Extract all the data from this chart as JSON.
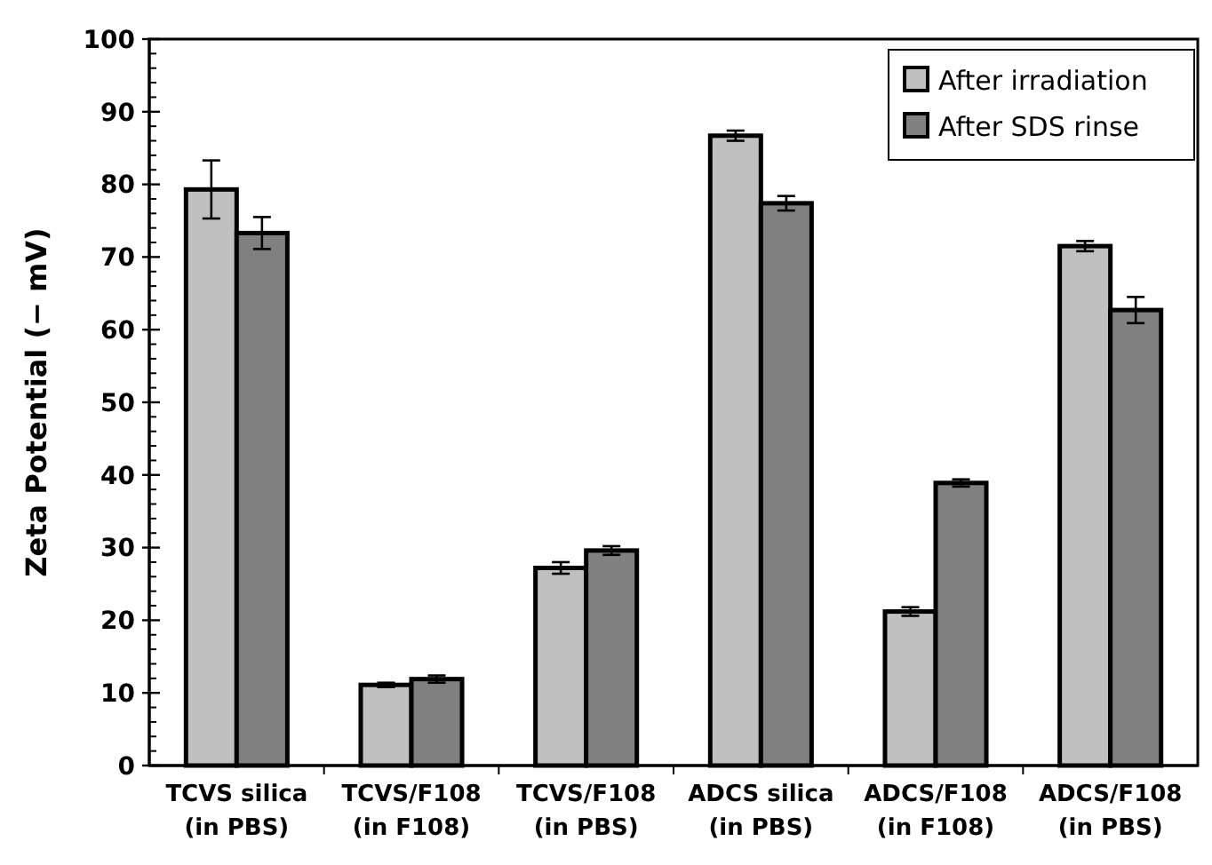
{
  "chart_data": {
    "type": "bar",
    "ylabel": "Zeta Potential (− mV)",
    "categories": [
      "TCVS silica\n(in PBS)",
      "TCVS/F108\n(in F108)",
      "TCVS/F108\n(in PBS)",
      "ADCS silica\n(in PBS)",
      "ADCS/F108\n(in F108)",
      "ADCS/F108\n(in PBS)"
    ],
    "series": [
      {
        "name": "After irradiation",
        "color": "#c0c0c0",
        "values": [
          79.3,
          11.1,
          27.2,
          86.7,
          21.2,
          71.5
        ],
        "errors": [
          4,
          0.3,
          0.8,
          0.7,
          0.6,
          0.7
        ]
      },
      {
        "name": "After SDS rinse",
        "color": "#808080",
        "values": [
          73.3,
          11.9,
          29.6,
          77.4,
          38.9,
          62.7
        ],
        "errors": [
          2.2,
          0.5,
          0.6,
          1,
          0.5,
          1.8
        ]
      }
    ],
    "ylim": [
      0,
      100
    ],
    "yticks": [
      0,
      10,
      20,
      30,
      40,
      50,
      60,
      70,
      80,
      90,
      100
    ],
    "legend": "top right"
  }
}
